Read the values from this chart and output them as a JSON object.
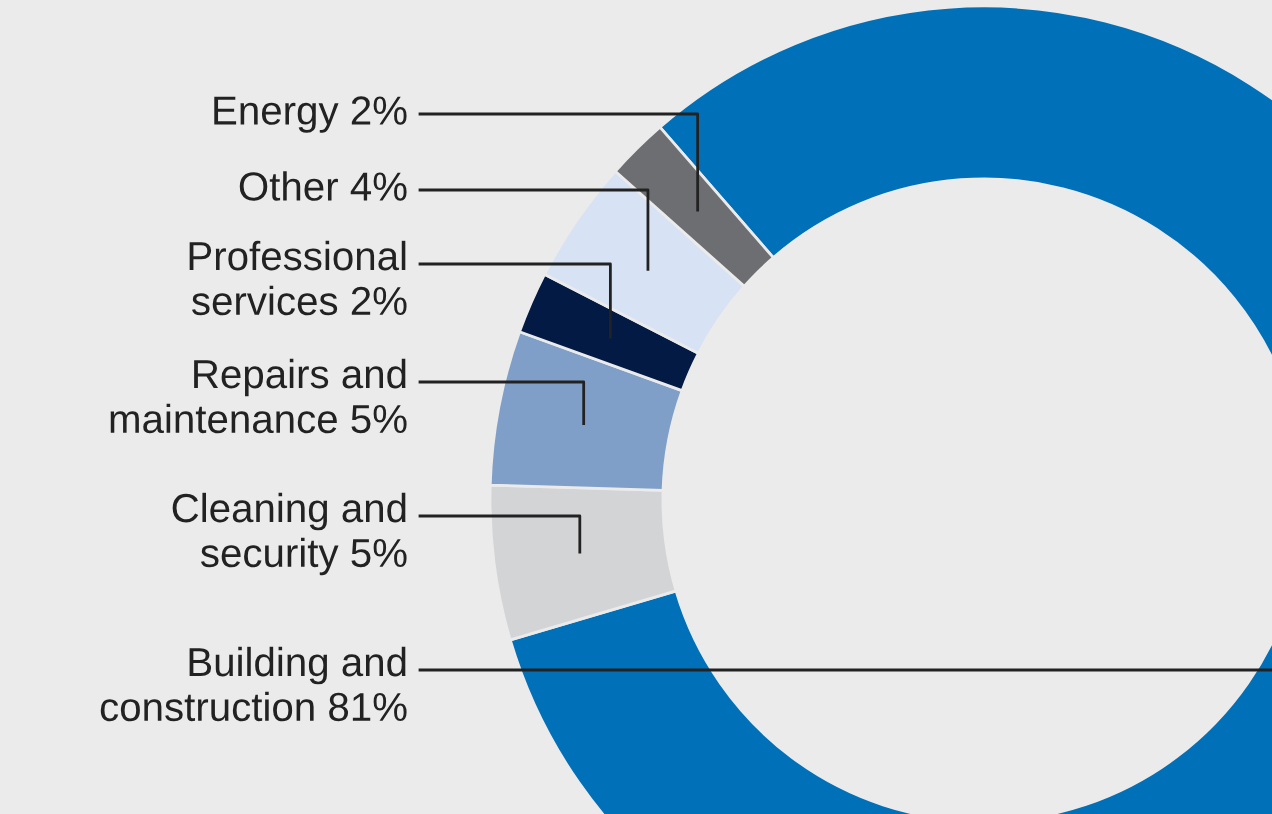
{
  "chart_data": {
    "type": "donut",
    "categories": [
      "Building and\nconstruction 81%",
      "Cleaning and\nsecurity 5%",
      "Repairs and\nmaintenance 5%",
      "Professional\nservices 2%",
      "Other 4%",
      "Energy 2%"
    ],
    "values": [
      81,
      5,
      5,
      2,
      4,
      2
    ],
    "colors": [
      "#0070b8",
      "#d3d4d6",
      "#7f9fc8",
      "#031a44",
      "#d7e2f4",
      "#6d6e71"
    ],
    "legend": false
  }
}
